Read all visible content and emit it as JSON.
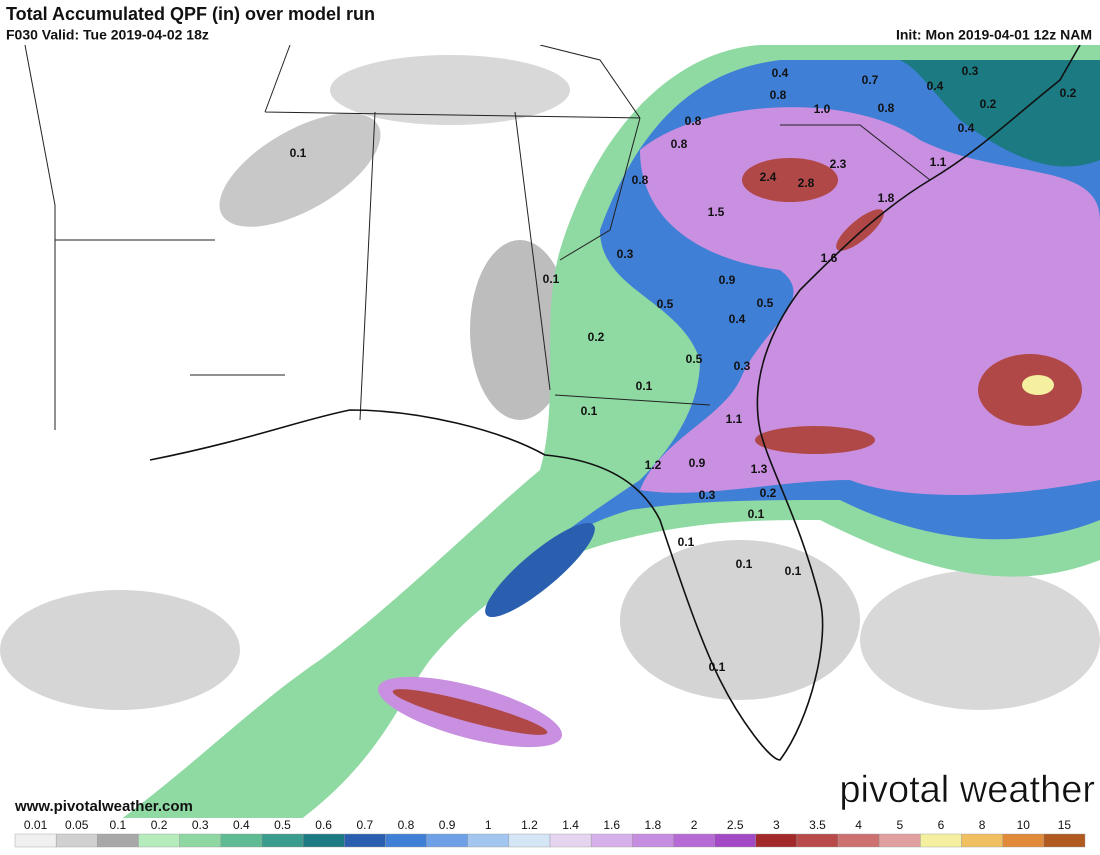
{
  "header": {
    "title": "Total Accumulated QPF (in) over model run",
    "valid": "F030 Valid: Tue 2019-04-02 18z",
    "init": "Init: Mon 2019-04-01 12z NAM"
  },
  "map_labels": [
    "0.4",
    "0.7",
    "0.3",
    "0.4",
    "0.8",
    "1.0",
    "0.8",
    "0.2",
    "0.2",
    "0.1",
    "0.8",
    "0.8",
    "0.4",
    "2.3",
    "1.1",
    "0.8",
    "2.4",
    "2.8",
    "1.8",
    "1.5",
    "0.3",
    "1.6",
    "0.1",
    "0.9",
    "0.5",
    "0.5",
    "0.4",
    "0.2",
    "0.5",
    "0.3",
    "0.1",
    "0.1",
    "1.1",
    "1.2",
    "0.9",
    "1.3",
    "0.3",
    "0.2",
    "0.1",
    "0.1",
    "0.1",
    "0.1",
    "0.1"
  ],
  "website": "www.pivotalweather.com",
  "logo": "pivotal weather",
  "colorbar": {
    "labels": [
      "0.01",
      "0.05",
      "0.1",
      "0.2",
      "0.3",
      "0.4",
      "0.5",
      "0.6",
      "0.7",
      "0.8",
      "0.9",
      "1",
      "1.2",
      "1.4",
      "1.6",
      "1.8",
      "2",
      "2.5",
      "3",
      "3.5",
      "4",
      "5",
      "6",
      "8",
      "10",
      "15"
    ],
    "colors": [
      "#f0f0f0",
      "#d0d0d0",
      "#a8a8a8",
      "#b4ecbc",
      "#8ed7a3",
      "#5fbb93",
      "#3a9c8c",
      "#1b7a82",
      "#2a5fb0",
      "#3f7fd6",
      "#6ea0e8",
      "#a3c6f0",
      "#d4e6f6",
      "#e5d4f0",
      "#d6b0ea",
      "#c58ee0",
      "#b56ad6",
      "#a24ac6",
      "#a22a2a",
      "#b84a4a",
      "#cc7070",
      "#e0a0a0",
      "#f5f0a0",
      "#f0c060",
      "#e08a3a",
      "#b05a20"
    ]
  }
}
